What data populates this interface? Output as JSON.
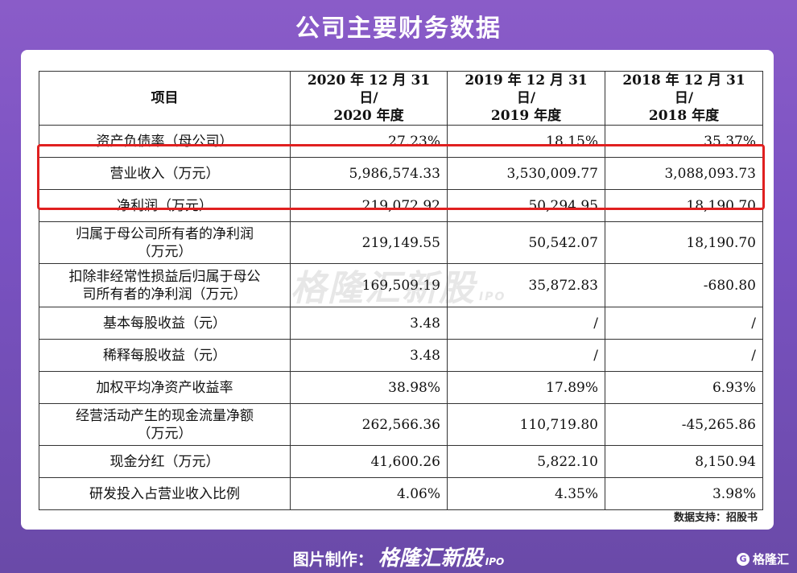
{
  "title": "公司主要财务数据",
  "table": {
    "headers": [
      "项目",
      "2020 年 12 月 31 日/\n2020 年度",
      "2019 年 12 月 31 日/\n2019 年度",
      "2018 年 12 月 31 日/\n2018 年度"
    ],
    "rows": [
      {
        "label": "资产负债率（母公司）",
        "v2020": "27.23%",
        "v2019": "18.15%",
        "v2018": "35.37%"
      },
      {
        "label": "营业收入（万元）",
        "v2020": "5,986,574.33",
        "v2019": "3,530,009.77",
        "v2018": "3,088,093.73"
      },
      {
        "label": "净利润（万元）",
        "v2020": "219,072.92",
        "v2019": "50,294.95",
        "v2018": "18,190.70"
      },
      {
        "label": "归属于母公司所有者的净利润\n（万元）",
        "v2020": "219,149.55",
        "v2019": "50,542.07",
        "v2018": "18,190.70"
      },
      {
        "label": "扣除非经常性损益后归属于母公\n司所有者的净利润（万元）",
        "v2020": "169,509.19",
        "v2019": "35,872.83",
        "v2018": "-680.80"
      },
      {
        "label": "基本每股收益（元）",
        "v2020": "3.48",
        "v2019": "/",
        "v2018": "/"
      },
      {
        "label": "稀释每股收益（元）",
        "v2020": "3.48",
        "v2019": "/",
        "v2018": "/"
      },
      {
        "label": "加权平均净资产收益率",
        "v2020": "38.98%",
        "v2019": "17.89%",
        "v2018": "6.93%"
      },
      {
        "label": "经营活动产生的现金流量净额\n（万元）",
        "v2020": "262,566.36",
        "v2019": "110,719.80",
        "v2018": "-45,265.86"
      },
      {
        "label": "现金分红（万元）",
        "v2020": "41,600.26",
        "v2019": "5,822.10",
        "v2018": "8,150.94"
      },
      {
        "label": "研发投入占营业收入比例",
        "v2020": "4.06%",
        "v2019": "4.35%",
        "v2018": "3.98%"
      }
    ]
  },
  "watermark": {
    "brand": "格隆汇新股",
    "tag": "IPO"
  },
  "source": "数据支持：招股书",
  "footer": {
    "prefix": "图片制作：",
    "brand": "格隆汇新股",
    "tag": "IPO"
  },
  "corner_logo": {
    "icon": "G",
    "text": "格隆汇"
  },
  "colors": {
    "background": "#7a52c2",
    "highlight": "#e02020"
  }
}
